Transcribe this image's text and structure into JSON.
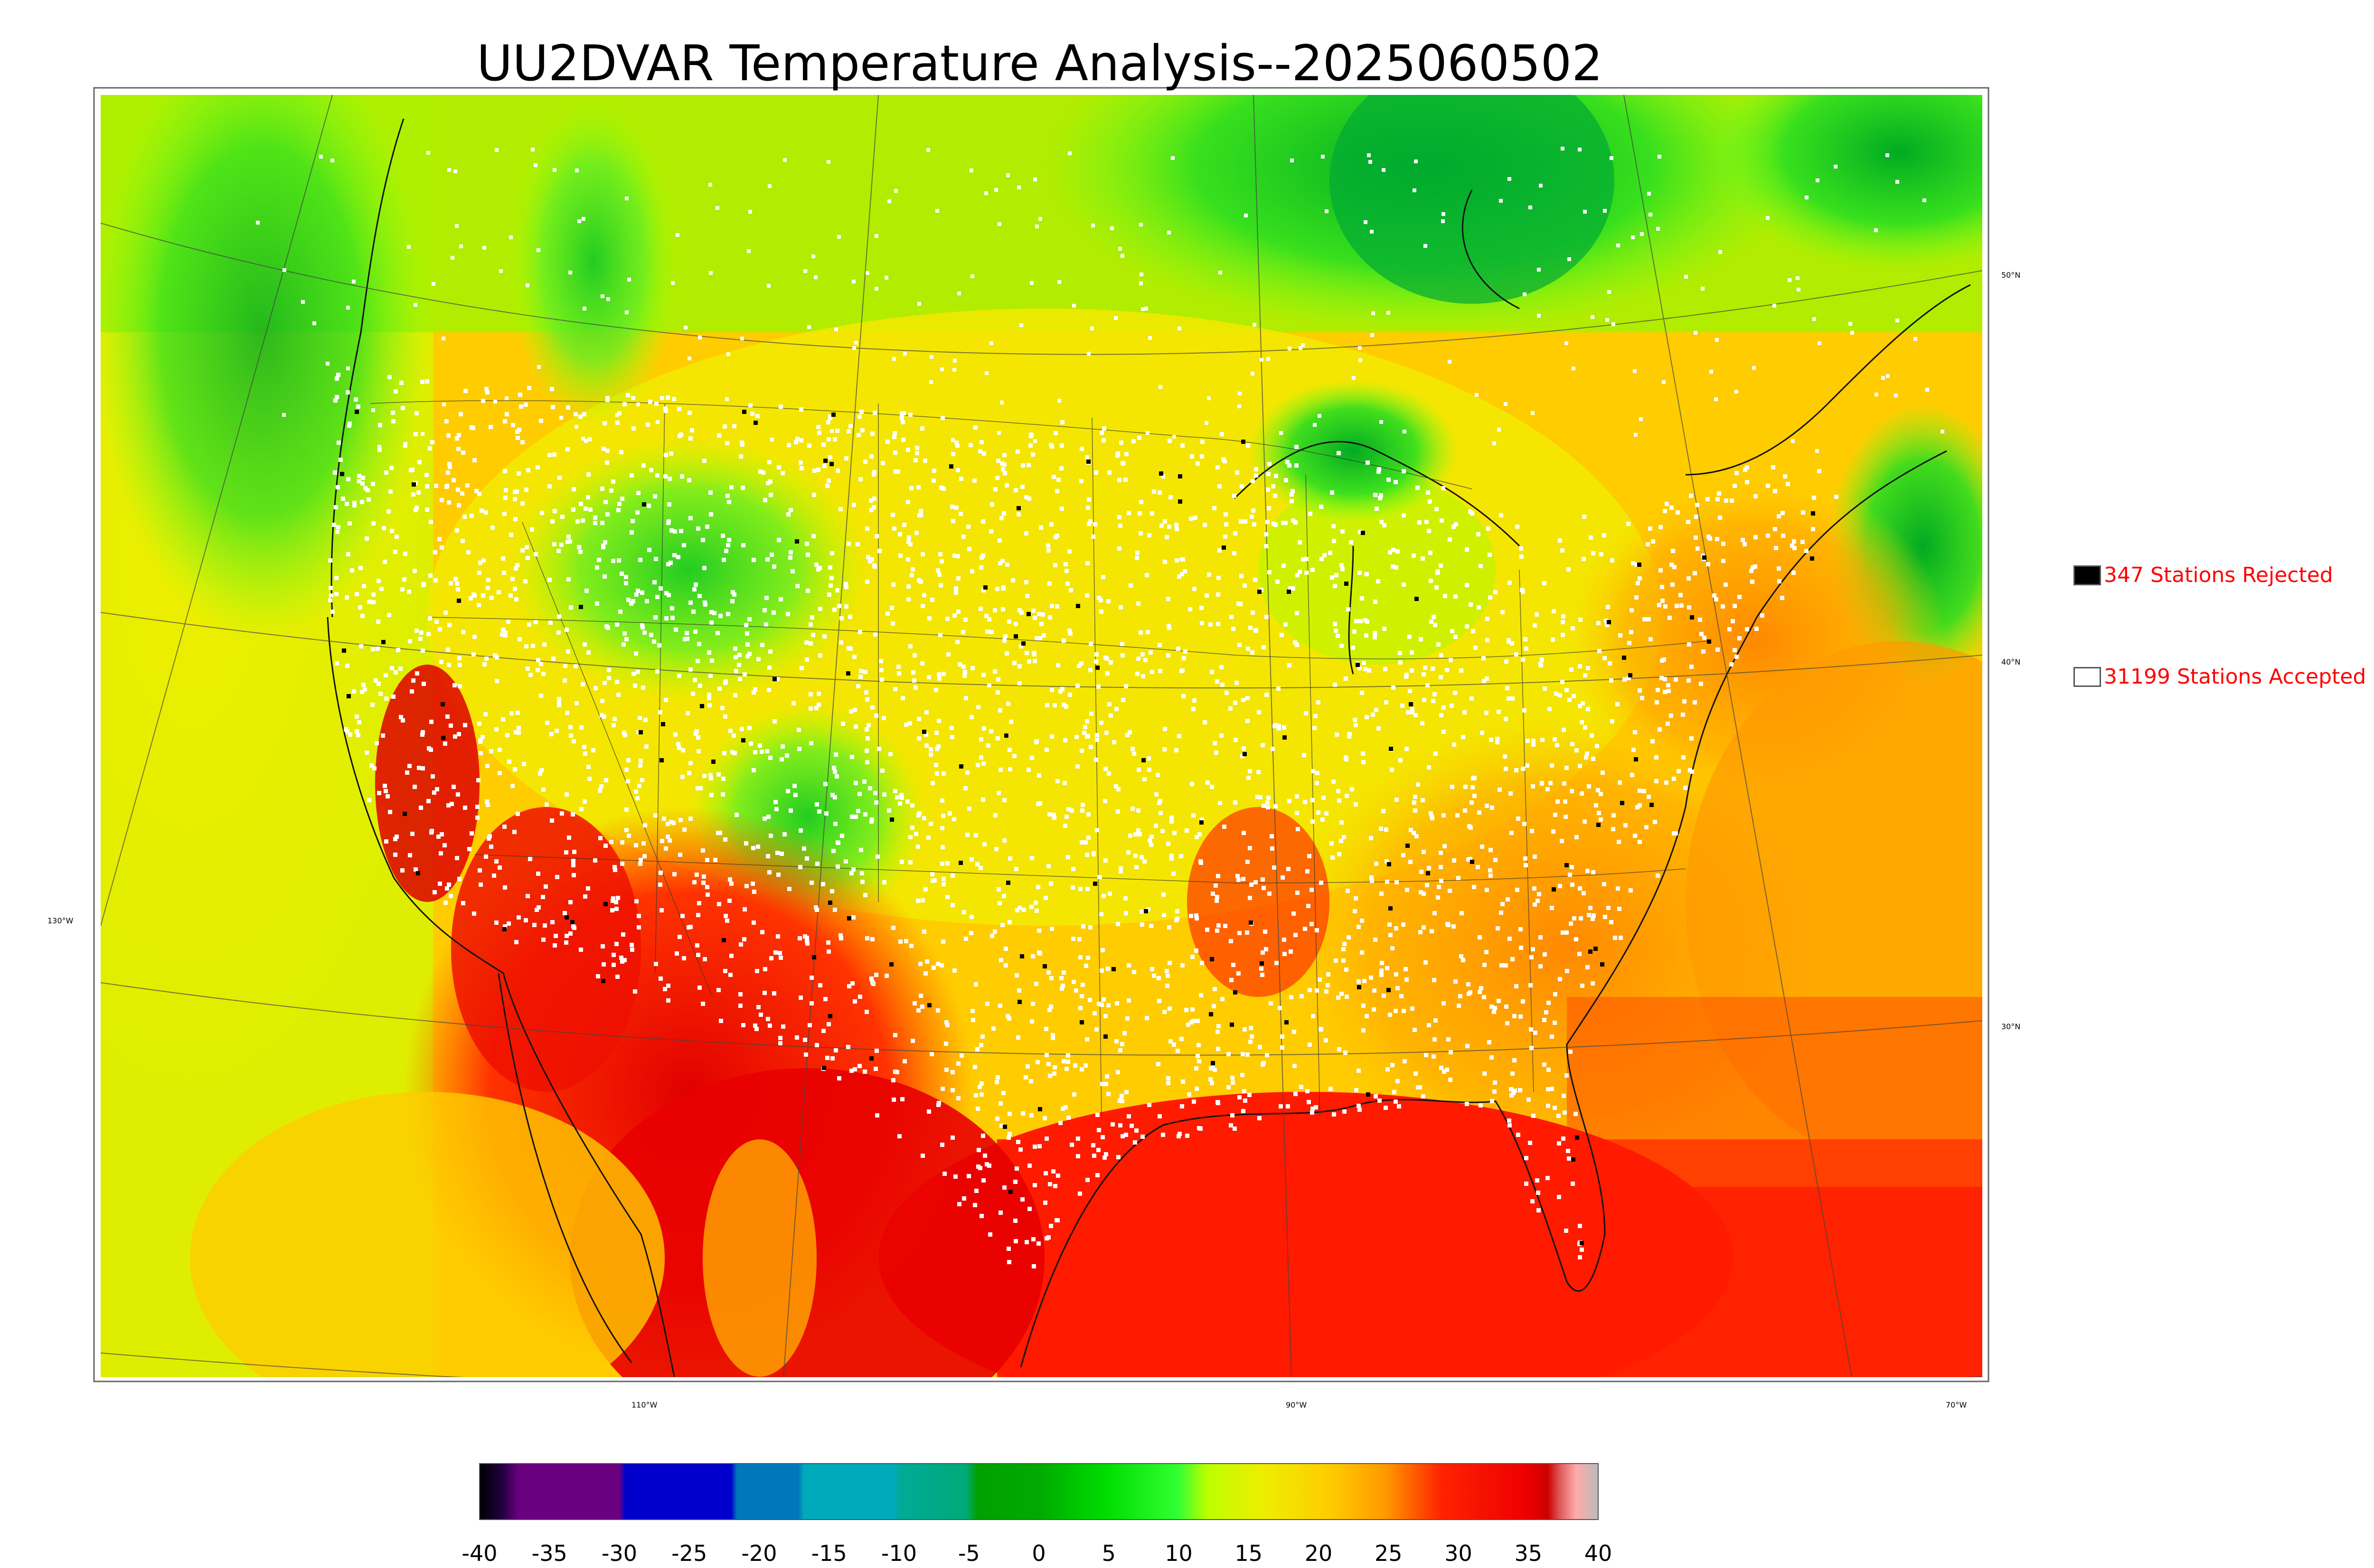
{
  "title": "UU2DVAR Temperature Analysis--2025060502",
  "legend": {
    "rejected": {
      "label": "347 Stations Rejected",
      "fill": "#000000"
    },
    "accepted": {
      "label": "31199 Stations Accepted",
      "fill": "#ffffff"
    }
  },
  "graticule": {
    "lat_labels": [
      "50°N",
      "40°N",
      "30°N"
    ],
    "lon_labels": [
      "130°W",
      "110°W",
      "90°W",
      "70°W"
    ]
  },
  "colorbar": {
    "ticks": [
      "-40",
      "-35",
      "-30",
      "-25",
      "-20",
      "-15",
      "-10",
      "-5",
      "0",
      "5",
      "10",
      "15",
      "20",
      "25",
      "30",
      "35",
      "40"
    ],
    "colors": {
      "warm_max": "#d40000",
      "red": "#ff1a00",
      "orange": "#ffa500",
      "yellow": "#ffe600",
      "lime": "#ccff00",
      "green": "#00ee00",
      "dark_green": "#008800",
      "teal": "#00aaaa",
      "blue": "#0000cc",
      "purple": "#6a0080"
    }
  }
}
